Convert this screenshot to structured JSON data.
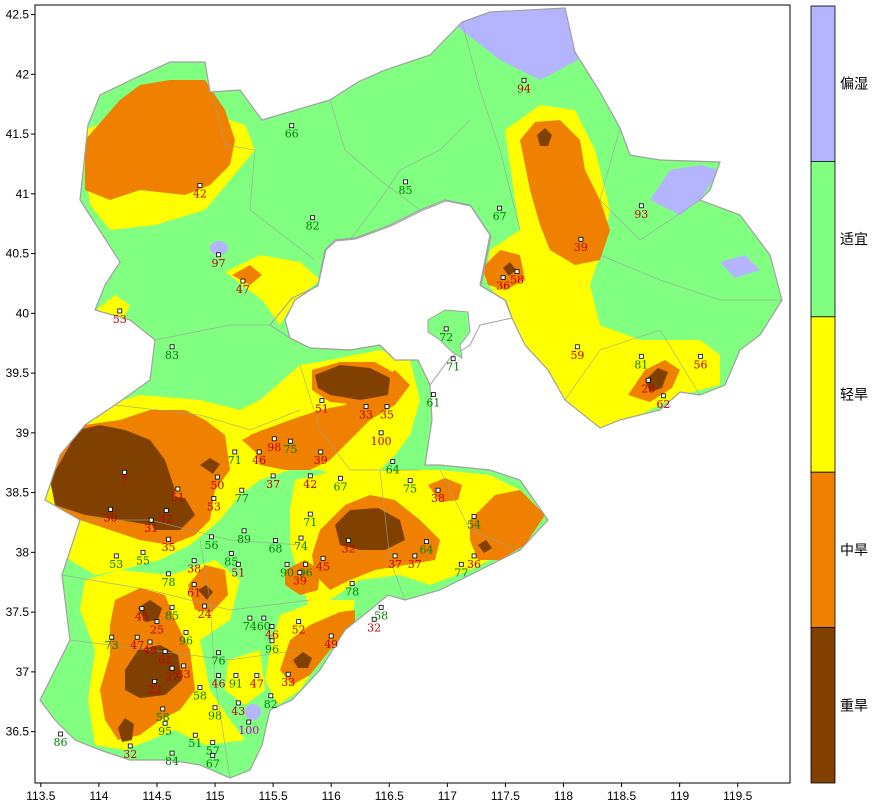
{
  "map": {
    "axes": {
      "x_ticks": [
        "113.5",
        "114",
        "114.5",
        "115",
        "115.5",
        "116",
        "116.5",
        "117",
        "117.5",
        "118",
        "118.5",
        "119",
        "119.5"
      ],
      "y_ticks": [
        "42.5",
        "42",
        "41.5",
        "41",
        "40.5",
        "40",
        "39.5",
        "39",
        "38.5",
        "38",
        "37.5",
        "37",
        "36.5"
      ],
      "x_range": [
        113.45,
        119.95
      ],
      "y_range": [
        36.07,
        42.58
      ]
    },
    "colors": {
      "wet": "#b4b4ff",
      "suitable": "#80ff80",
      "light_drought": "#ffff00",
      "moderate_drought": "#f08000",
      "severe_drought": "#804000"
    },
    "legend": [
      {
        "label": "偏湿",
        "color": "#b4b4ff"
      },
      {
        "label": "适宜",
        "color": "#80ff80"
      },
      {
        "label": "轻旱",
        "color": "#ffff00"
      },
      {
        "label": "中旱",
        "color": "#f08000"
      },
      {
        "label": "重旱",
        "color": "#804000"
      }
    ],
    "stations": [
      {
        "v": "94",
        "lon": 117.66,
        "lat": 41.95,
        "c": "#c00000"
      },
      {
        "v": "66",
        "lon": 115.66,
        "lat": 41.57,
        "c": "#008000"
      },
      {
        "v": "42",
        "lon": 114.87,
        "lat": 41.07,
        "c": "#c00000"
      },
      {
        "v": "85",
        "lon": 116.64,
        "lat": 41.1,
        "c": "#008000"
      },
      {
        "v": "67",
        "lon": 117.45,
        "lat": 40.88,
        "c": "#008000"
      },
      {
        "v": "93",
        "lon": 118.67,
        "lat": 40.9,
        "c": "#c00000"
      },
      {
        "v": "82",
        "lon": 115.84,
        "lat": 40.8,
        "c": "#008000"
      },
      {
        "v": "39",
        "lon": 118.15,
        "lat": 40.62,
        "c": "#c00000"
      },
      {
        "v": "97",
        "lon": 115.03,
        "lat": 40.49,
        "c": "#c00000"
      },
      {
        "v": "47",
        "lon": 115.24,
        "lat": 40.27,
        "c": "#c00000"
      },
      {
        "v": "36",
        "lon": 117.48,
        "lat": 40.3,
        "c": "#c00000"
      },
      {
        "v": "58",
        "lon": 117.6,
        "lat": 40.35,
        "c": "#c00000"
      },
      {
        "v": "53",
        "lon": 114.18,
        "lat": 40.02,
        "c": "#c00000"
      },
      {
        "v": "72",
        "lon": 116.99,
        "lat": 39.87,
        "c": "#008000"
      },
      {
        "v": "71",
        "lon": 117.05,
        "lat": 39.62,
        "c": "#008000"
      },
      {
        "v": "83",
        "lon": 114.63,
        "lat": 39.72,
        "c": "#008000"
      },
      {
        "v": "59",
        "lon": 118.12,
        "lat": 39.72,
        "c": "#c00000"
      },
      {
        "v": "81",
        "lon": 118.67,
        "lat": 39.64,
        "c": "#008000"
      },
      {
        "v": "56",
        "lon": 119.18,
        "lat": 39.64,
        "c": "#c00000"
      },
      {
        "v": "28",
        "lon": 118.73,
        "lat": 39.44,
        "c": "#c00000"
      },
      {
        "v": "62",
        "lon": 118.86,
        "lat": 39.31,
        "c": "#c00000"
      },
      {
        "v": "61",
        "lon": 116.88,
        "lat": 39.32,
        "c": "#008000"
      },
      {
        "v": "51",
        "lon": 115.92,
        "lat": 39.27,
        "c": "#c00000"
      },
      {
        "v": "33",
        "lon": 116.3,
        "lat": 39.22,
        "c": "#c00000"
      },
      {
        "v": "35",
        "lon": 116.48,
        "lat": 39.22,
        "c": "#c00000"
      },
      {
        "v": "100",
        "lon": 116.43,
        "lat": 39.0,
        "c": "#c00000"
      },
      {
        "v": "98",
        "lon": 115.51,
        "lat": 38.95,
        "c": "#c00000"
      },
      {
        "v": "75",
        "lon": 115.65,
        "lat": 38.93,
        "c": "#008000"
      },
      {
        "v": "71",
        "lon": 115.17,
        "lat": 38.84,
        "c": "#008000"
      },
      {
        "v": "46",
        "lon": 115.38,
        "lat": 38.84,
        "c": "#c00000"
      },
      {
        "v": "39",
        "lon": 115.91,
        "lat": 38.84,
        "c": "#c00000"
      },
      {
        "v": "64",
        "lon": 116.53,
        "lat": 38.76,
        "c": "#008000"
      },
      {
        "v": "37",
        "lon": 115.5,
        "lat": 38.64,
        "c": "#c00000"
      },
      {
        "v": "42",
        "lon": 115.82,
        "lat": 38.64,
        "c": "#c00000"
      },
      {
        "v": "67",
        "lon": 116.08,
        "lat": 38.62,
        "c": "#008000"
      },
      {
        "v": "75",
        "lon": 116.68,
        "lat": 38.6,
        "c": "#008000"
      },
      {
        "v": "7",
        "lon": 114.22,
        "lat": 38.67,
        "c": "#c00000"
      },
      {
        "v": "50",
        "lon": 115.02,
        "lat": 38.63,
        "c": "#c00000"
      },
      {
        "v": "77",
        "lon": 115.23,
        "lat": 38.52,
        "c": "#008000"
      },
      {
        "v": "51",
        "lon": 114.68,
        "lat": 38.53,
        "c": "#c00000"
      },
      {
        "v": "38",
        "lon": 116.92,
        "lat": 38.52,
        "c": "#c00000"
      },
      {
        "v": "53",
        "lon": 114.99,
        "lat": 38.45,
        "c": "#c00000"
      },
      {
        "v": "30",
        "lon": 114.1,
        "lat": 38.36,
        "c": "#c00000"
      },
      {
        "v": "31",
        "lon": 114.45,
        "lat": 38.27,
        "c": "#c00000"
      },
      {
        "v": "42",
        "lon": 114.58,
        "lat": 38.35,
        "c": "#c00000"
      },
      {
        "v": "71",
        "lon": 115.82,
        "lat": 38.32,
        "c": "#008000"
      },
      {
        "v": "54",
        "lon": 117.23,
        "lat": 38.3,
        "c": "#008000"
      },
      {
        "v": "89",
        "lon": 115.25,
        "lat": 38.18,
        "c": "#008000"
      },
      {
        "v": "56",
        "lon": 114.97,
        "lat": 38.13,
        "c": "#008000"
      },
      {
        "v": "35",
        "lon": 114.6,
        "lat": 38.11,
        "c": "#c00000"
      },
      {
        "v": "68",
        "lon": 115.52,
        "lat": 38.1,
        "c": "#008000"
      },
      {
        "v": "74",
        "lon": 115.74,
        "lat": 38.12,
        "c": "#008000"
      },
      {
        "v": "32",
        "lon": 116.15,
        "lat": 38.1,
        "c": "#c00000"
      },
      {
        "v": "64",
        "lon": 116.82,
        "lat": 38.09,
        "c": "#008000"
      },
      {
        "v": "53",
        "lon": 114.15,
        "lat": 37.97,
        "c": "#008000"
      },
      {
        "v": "55",
        "lon": 114.38,
        "lat": 38.0,
        "c": "#008000"
      },
      {
        "v": "85",
        "lon": 115.14,
        "lat": 37.99,
        "c": "#008000"
      },
      {
        "v": "37",
        "lon": 116.55,
        "lat": 37.97,
        "c": "#c00000"
      },
      {
        "v": "37",
        "lon": 116.72,
        "lat": 37.97,
        "c": "#c00000"
      },
      {
        "v": "36",
        "lon": 117.23,
        "lat": 37.97,
        "c": "#c00000"
      },
      {
        "v": "38",
        "lon": 114.82,
        "lat": 37.93,
        "c": "#c00000"
      },
      {
        "v": "51",
        "lon": 115.2,
        "lat": 37.9,
        "c": "#c00000"
      },
      {
        "v": "90",
        "lon": 115.62,
        "lat": 37.9,
        "c": "#008000"
      },
      {
        "v": "96",
        "lon": 115.78,
        "lat": 37.9,
        "c": "#008000"
      },
      {
        "v": "45",
        "lon": 115.93,
        "lat": 37.95,
        "c": "#c00000"
      },
      {
        "v": "77",
        "lon": 117.12,
        "lat": 37.9,
        "c": "#008000"
      },
      {
        "v": "78",
        "lon": 114.6,
        "lat": 37.82,
        "c": "#008000"
      },
      {
        "v": "39",
        "lon": 115.73,
        "lat": 37.83,
        "c": "#c00000"
      },
      {
        "v": "61",
        "lon": 114.82,
        "lat": 37.73,
        "c": "#c00000"
      },
      {
        "v": "78",
        "lon": 116.18,
        "lat": 37.74,
        "c": "#008000"
      },
      {
        "v": "24",
        "lon": 114.91,
        "lat": 37.55,
        "c": "#c00000"
      },
      {
        "v": "45",
        "lon": 114.37,
        "lat": 37.53,
        "c": "#c00000"
      },
      {
        "v": "85",
        "lon": 114.63,
        "lat": 37.54,
        "c": "#008000"
      },
      {
        "v": "58",
        "lon": 116.43,
        "lat": 37.54,
        "c": "#008000"
      },
      {
        "v": "25",
        "lon": 114.5,
        "lat": 37.42,
        "c": "#c00000"
      },
      {
        "v": "74",
        "lon": 115.3,
        "lat": 37.45,
        "c": "#008000"
      },
      {
        "v": "60",
        "lon": 115.42,
        "lat": 37.45,
        "c": "#008000"
      },
      {
        "v": "52",
        "lon": 115.72,
        "lat": 37.42,
        "c": "#c00000"
      },
      {
        "v": "32",
        "lon": 116.37,
        "lat": 37.44,
        "c": "#c00000"
      },
      {
        "v": "46",
        "lon": 115.49,
        "lat": 37.38,
        "c": "#c00000"
      },
      {
        "v": "96",
        "lon": 114.75,
        "lat": 37.33,
        "c": "#008000"
      },
      {
        "v": "73",
        "lon": 114.11,
        "lat": 37.29,
        "c": "#008000"
      },
      {
        "v": "47",
        "lon": 114.33,
        "lat": 37.29,
        "c": "#c00000"
      },
      {
        "v": "49",
        "lon": 114.44,
        "lat": 37.25,
        "c": "#c00000"
      },
      {
        "v": "49",
        "lon": 116.0,
        "lat": 37.3,
        "c": "#c00000"
      },
      {
        "v": "96",
        "lon": 115.49,
        "lat": 37.26,
        "c": "#008000"
      },
      {
        "v": "62",
        "lon": 114.57,
        "lat": 37.17,
        "c": "#c00000"
      },
      {
        "v": "76",
        "lon": 115.03,
        "lat": 37.16,
        "c": "#008000"
      },
      {
        "v": "33",
        "lon": 114.73,
        "lat": 37.05,
        "c": "#c00000"
      },
      {
        "v": "27",
        "lon": 114.63,
        "lat": 37.03,
        "c": "#c00000"
      },
      {
        "v": "46",
        "lon": 115.03,
        "lat": 36.97,
        "c": "#c00000"
      },
      {
        "v": "91",
        "lon": 115.18,
        "lat": 36.97,
        "c": "#008000"
      },
      {
        "v": "47",
        "lon": 115.36,
        "lat": 36.97,
        "c": "#c00000"
      },
      {
        "v": "33",
        "lon": 115.63,
        "lat": 36.98,
        "c": "#c00000"
      },
      {
        "v": "22",
        "lon": 114.48,
        "lat": 36.92,
        "c": "#c00000"
      },
      {
        "v": "58",
        "lon": 114.87,
        "lat": 36.87,
        "c": "#008000"
      },
      {
        "v": "58",
        "lon": 114.55,
        "lat": 36.69,
        "c": "#008000"
      },
      {
        "v": "43",
        "lon": 115.2,
        "lat": 36.74,
        "c": "#c00000"
      },
      {
        "v": "82",
        "lon": 115.48,
        "lat": 36.8,
        "c": "#008000"
      },
      {
        "v": "98",
        "lon": 115.0,
        "lat": 36.7,
        "c": "#008000"
      },
      {
        "v": "95",
        "lon": 114.57,
        "lat": 36.57,
        "c": "#008000"
      },
      {
        "v": "100",
        "lon": 115.29,
        "lat": 36.58,
        "c": "#c000c0"
      },
      {
        "v": "86",
        "lon": 113.67,
        "lat": 36.48,
        "c": "#008000"
      },
      {
        "v": "51",
        "lon": 114.83,
        "lat": 36.47,
        "c": "#008000"
      },
      {
        "v": "57",
        "lon": 114.98,
        "lat": 36.41,
        "c": "#008000"
      },
      {
        "v": "32",
        "lon": 114.27,
        "lat": 36.38,
        "c": "#c00000"
      },
      {
        "v": "84",
        "lon": 114.63,
        "lat": 36.32,
        "c": "#008000"
      },
      {
        "v": "67",
        "lon": 114.98,
        "lat": 36.3,
        "c": "#008000"
      }
    ]
  }
}
